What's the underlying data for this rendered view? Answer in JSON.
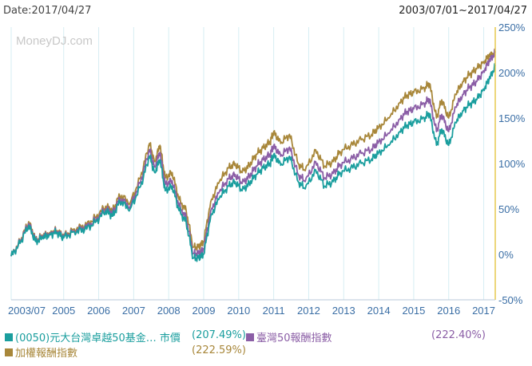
{
  "header": {
    "date_label": "Date:2017/04/27",
    "range_label": "2003/07/01~2017/04/27"
  },
  "watermark": "MoneyDJ.com",
  "colors": {
    "series_0050": "#1a9e9e",
    "series_tw50": "#8b5ea6",
    "series_taiex": "#a8873a",
    "right_axis": "#e6c84e",
    "axis_text": "#3a6ea5",
    "grid": "#d6eef3"
  },
  "legend": [
    {
      "name": "(0050)元大台灣卓越50基金… 市價",
      "value": "(207.49%)",
      "color": "#1a9e9e"
    },
    {
      "name": "臺灣50報酬指數",
      "value": "(222.40%)",
      "color": "#8b5ea6"
    },
    {
      "name": "加權報酬指數",
      "value": "(222.59%)",
      "color": "#a8873a"
    }
  ],
  "chart_data": {
    "type": "line",
    "title": "",
    "xlabel": "",
    "ylabel": "",
    "x_ticks": [
      "2003/07",
      "2005",
      "2006",
      "2007",
      "2008",
      "2009",
      "2010",
      "2011",
      "2012",
      "2013",
      "2014",
      "2015",
      "2016",
      "2017"
    ],
    "y_ticks": [
      "250%",
      "200%",
      "150%",
      "100%",
      "50%",
      "0%",
      "-50%"
    ],
    "ylim": [
      -50,
      250
    ],
    "xlim": [
      2003.5,
      2017.33
    ],
    "y_axis_side": "right",
    "grid": true,
    "legend_position": "bottom",
    "series": [
      {
        "name": "(0050)元大台灣卓越50基金… 市價",
        "color": "#1a9e9e",
        "x": [
          2003.5,
          2003.75,
          2004.0,
          2004.2,
          2004.4,
          2004.6,
          2004.8,
          2005.0,
          2005.3,
          2005.6,
          2005.9,
          2006.2,
          2006.4,
          2006.6,
          2006.9,
          2007.2,
          2007.45,
          2007.6,
          2007.75,
          2007.9,
          2008.1,
          2008.3,
          2008.5,
          2008.7,
          2008.85,
          2009.0,
          2009.2,
          2009.45,
          2009.7,
          2009.9,
          2010.1,
          2010.3,
          2010.5,
          2010.7,
          2010.9,
          2011.0,
          2011.2,
          2011.45,
          2011.7,
          2011.9,
          2012.2,
          2012.45,
          2012.7,
          2012.9,
          2013.2,
          2013.5,
          2013.8,
          2014.0,
          2014.3,
          2014.6,
          2014.8,
          2015.0,
          2015.3,
          2015.45,
          2015.65,
          2015.8,
          2016.0,
          2016.2,
          2016.4,
          2016.6,
          2016.8,
          2017.0,
          2017.15,
          2017.33
        ],
        "values": [
          -2,
          12,
          32,
          14,
          18,
          22,
          24,
          18,
          25,
          27,
          35,
          48,
          42,
          58,
          50,
          75,
          108,
          90,
          104,
          70,
          75,
          48,
          35,
          -4,
          -4,
          0,
          42,
          62,
          75,
          80,
          70,
          78,
          88,
          95,
          100,
          110,
          98,
          108,
          80,
          72,
          93,
          75,
          80,
          90,
          95,
          100,
          105,
          112,
          120,
          135,
          142,
          145,
          150,
          155,
          120,
          138,
          120,
          145,
          158,
          165,
          170,
          182,
          192,
          207
        ]
      },
      {
        "name": "臺灣50報酬指數",
        "color": "#8b5ea6",
        "x": [
          2003.5,
          2003.75,
          2004.0,
          2004.2,
          2004.4,
          2004.6,
          2004.8,
          2005.0,
          2005.3,
          2005.6,
          2005.9,
          2006.2,
          2006.4,
          2006.6,
          2006.9,
          2007.2,
          2007.45,
          2007.6,
          2007.75,
          2007.9,
          2008.1,
          2008.3,
          2008.5,
          2008.7,
          2008.85,
          2009.0,
          2009.2,
          2009.45,
          2009.7,
          2009.9,
          2010.1,
          2010.3,
          2010.5,
          2010.7,
          2010.9,
          2011.0,
          2011.2,
          2011.45,
          2011.7,
          2011.9,
          2012.2,
          2012.45,
          2012.7,
          2012.9,
          2013.2,
          2013.5,
          2013.8,
          2014.0,
          2014.3,
          2014.6,
          2014.8,
          2015.0,
          2015.3,
          2015.45,
          2015.65,
          2015.8,
          2016.0,
          2016.2,
          2016.4,
          2016.6,
          2016.8,
          2017.0,
          2017.15,
          2017.33
        ],
        "values": [
          -2,
          13,
          34,
          15,
          19,
          23,
          25,
          19,
          26,
          29,
          37,
          50,
          45,
          61,
          53,
          80,
          115,
          96,
          112,
          77,
          81,
          53,
          40,
          1,
          1,
          6,
          48,
          69,
          83,
          88,
          78,
          86,
          97,
          104,
          110,
          120,
          108,
          118,
          88,
          80,
          102,
          84,
          89,
          99,
          105,
          111,
          116,
          124,
          133,
          149,
          157,
          160,
          166,
          171,
          135,
          154,
          135,
          162,
          176,
          184,
          190,
          202,
          212,
          222
        ]
      },
      {
        "name": "加權報酬指數",
        "color": "#a8873a",
        "x": [
          2003.5,
          2003.75,
          2004.0,
          2004.2,
          2004.4,
          2004.6,
          2004.8,
          2005.0,
          2005.3,
          2005.6,
          2005.9,
          2006.2,
          2006.4,
          2006.6,
          2006.9,
          2007.2,
          2007.45,
          2007.6,
          2007.75,
          2007.9,
          2008.1,
          2008.3,
          2008.5,
          2008.7,
          2008.85,
          2009.0,
          2009.2,
          2009.45,
          2009.7,
          2009.9,
          2010.1,
          2010.3,
          2010.5,
          2010.7,
          2010.9,
          2011.0,
          2011.2,
          2011.45,
          2011.7,
          2011.9,
          2012.2,
          2012.45,
          2012.7,
          2012.9,
          2013.2,
          2013.5,
          2013.8,
          2014.0,
          2014.3,
          2014.6,
          2014.8,
          2015.0,
          2015.3,
          2015.45,
          2015.65,
          2015.8,
          2016.0,
          2016.2,
          2016.4,
          2016.6,
          2016.8,
          2017.0,
          2017.15,
          2017.33
        ],
        "values": [
          -2,
          14,
          36,
          16,
          20,
          24,
          26,
          20,
          28,
          31,
          40,
          53,
          48,
          65,
          57,
          85,
          122,
          102,
          120,
          84,
          90,
          60,
          48,
          8,
          8,
          14,
          58,
          80,
          95,
          100,
          90,
          98,
          110,
          117,
          124,
          135,
          122,
          132,
          100,
          92,
          115,
          97,
          102,
          113,
          120,
          126,
          132,
          140,
          150,
          167,
          175,
          178,
          183,
          188,
          150,
          170,
          150,
          176,
          190,
          198,
          204,
          212,
          218,
          222
        ]
      }
    ]
  }
}
